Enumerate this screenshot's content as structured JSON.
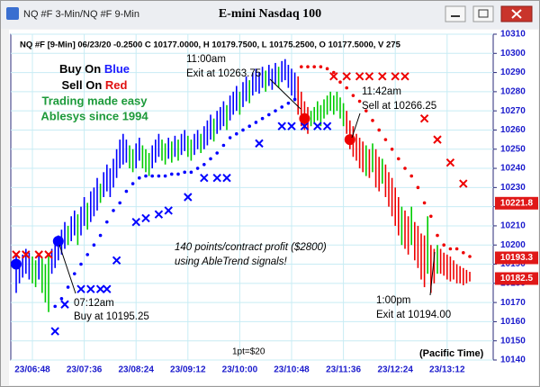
{
  "window_title": "NQ #F 3-Min/NQ #F 9-Min",
  "chart_data": {
    "type": "ohlc",
    "title": "E-mini Nasdaq 100",
    "info": "NQ #F [9-Min] 06/23/20  -0.2500 C 10177.0000, H 10179.7500, L 10175.2500, O 10177.5000, V 275",
    "buy_text": [
      "Buy On",
      "Blue"
    ],
    "sell_text": [
      "Sell On",
      "Red"
    ],
    "tagline": [
      "Trading made easy",
      "Ablesys since 1994"
    ],
    "annotations": [
      "11:00am",
      "Exit at 10263.75",
      "11:42am",
      "Sell at 10266.25",
      "07:12am",
      "Buy at 10195.25",
      "1:00pm",
      "Exit at 10194.00",
      "140 points/contract profit ($2800)",
      "using AbleTrend signals!",
      "1pt=$20",
      "(Pacific Time)"
    ],
    "categories": [
      null,
      null,
      null,
      null,
      null,
      "23/06:48",
      null,
      null,
      null,
      null,
      null,
      null,
      null,
      null,
      null,
      null,
      null,
      null,
      null,
      null,
      null,
      "23/07:36",
      null,
      null,
      null,
      null,
      null,
      null,
      null,
      null,
      null,
      null,
      null,
      null,
      null,
      null,
      null,
      "23/08:24",
      null,
      null,
      null,
      null,
      null,
      null,
      null,
      null,
      null,
      null,
      null,
      null,
      null,
      null,
      null,
      "23/09:12",
      null,
      null,
      null,
      null,
      null,
      null,
      null,
      null,
      null,
      null,
      null,
      null,
      null,
      null,
      null,
      "23/10:00",
      null,
      null,
      null,
      null,
      null,
      null,
      null,
      null,
      null,
      null,
      null,
      null,
      null,
      null,
      null,
      "23/10:48",
      null,
      null,
      null,
      null,
      null,
      null,
      null,
      null,
      null,
      null,
      null,
      null,
      null,
      null,
      null,
      "23/11:36",
      null,
      null,
      null,
      null,
      null,
      null,
      null,
      null,
      null,
      null,
      null,
      null,
      null,
      null,
      null,
      "23/12:24",
      null,
      null,
      null,
      null,
      null,
      null,
      null,
      null,
      null,
      null,
      null,
      null,
      null,
      null,
      null,
      "23/13:12",
      null,
      null,
      null,
      null,
      null,
      null,
      null
    ],
    "high": [
      10195,
      10192,
      10195,
      10198,
      10196,
      10194,
      10192,
      10195,
      10193,
      10190,
      10195,
      10198,
      10200,
      10205,
      10208,
      10212,
      10210,
      10215,
      10218,
      10216,
      10220,
      10225,
      10222,
      10228,
      10230,
      10235,
      10232,
      10238,
      10242,
      10240,
      10245,
      10250,
      10255,
      10258,
      10255,
      10252,
      10250,
      10253,
      10256,
      10252,
      10250,
      10248,
      10252,
      10255,
      10258,
      10255,
      10253,
      10256,
      10254,
      10257,
      10255,
      10258,
      10260,
      10257,
      10255,
      10258,
      10260,
      10258,
      10262,
      10265,
      10268,
      10266,
      10270,
      10272,
      10275,
      10273,
      10278,
      10280,
      10283,
      10280,
      10285,
      10288,
      10286,
      10290,
      10292,
      10290,
      10293,
      10291,
      10294,
      10292,
      10295,
      10293,
      10296,
      10297,
      10294,
      10292,
      10290,
      10288,
      10280,
      10275,
      10272,
      10270,
      10272,
      10275,
      10273,
      10276,
      10278,
      10280,
      10278,
      10280,
      10277,
      10274,
      10270,
      10265,
      10262,
      10258,
      10256,
      10254,
      10252,
      10250,
      10253,
      10250,
      10246,
      10245,
      10242,
      10238,
      10235,
      10230,
      10225,
      10220,
      10218,
      10215,
      10220,
      10212,
      10210,
      10206,
      10205,
      10215,
      10200,
      10198,
      10200,
      10198,
      10196,
      10195,
      10194,
      10192,
      10190,
      10189,
      10188,
      10187,
      10186
    ],
    "low": [
      10175,
      10180,
      10183,
      10185,
      10182,
      10180,
      10178,
      10182,
      10175,
      10170,
      10165,
      10185,
      10188,
      10192,
      10195,
      10198,
      10200,
      10202,
      10205,
      10200,
      10205,
      10210,
      10208,
      10212,
      10215,
      10218,
      10222,
      10225,
      10228,
      10225,
      10230,
      10235,
      10240,
      10242,
      10243,
      10240,
      10238,
      10240,
      10244,
      10240,
      10238,
      10236,
      10240,
      10243,
      10246,
      10244,
      10242,
      10245,
      10243,
      10246,
      10244,
      10247,
      10249,
      10246,
      10244,
      10247,
      10250,
      10248,
      10250,
      10252,
      10255,
      10254,
      10258,
      10260,
      10262,
      10260,
      10265,
      10268,
      10270,
      10268,
      10272,
      10275,
      10274,
      10278,
      10280,
      10279,
      10282,
      10280,
      10283,
      10281,
      10284,
      10282,
      10285,
      10286,
      10282,
      10278,
      10275,
      10268,
      10262,
      10260,
      10258,
      10262,
      10263,
      10265,
      10262,
      10266,
      10268,
      10270,
      10268,
      10270,
      10266,
      10262,
      10258,
      10250,
      10246,
      10244,
      10240,
      10238,
      10236,
      10235,
      10238,
      10230,
      10228,
      10232,
      10225,
      10220,
      10215,
      10210,
      10205,
      10200,
      10198,
      10195,
      10200,
      10192,
      10188,
      10182,
      10178,
      10185,
      10175,
      10180,
      10185,
      10185,
      10184,
      10182,
      10181,
      10182,
      10180,
      10180,
      10179,
      10180,
      10181
    ],
    "bar_colors": [
      "#00f",
      "#00f",
      "#00f",
      "#00f",
      "#00f",
      "#0c0",
      "#0c0",
      "#00f",
      "#0c0",
      "#0c0",
      "#0c0",
      "#00f",
      "#00f",
      "#00f",
      "#00f",
      "#00f",
      "#0c0",
      "#00f",
      "#00f",
      "#0c0",
      "#00f",
      "#00f",
      "#0c0",
      "#00f",
      "#00f",
      "#00f",
      "#0c0",
      "#00f",
      "#00f",
      "#00f",
      "#00f",
      "#00f",
      "#00f",
      "#00f",
      "#00f",
      "#0c0",
      "#0c0",
      "#00f",
      "#00f",
      "#0c0",
      "#0c0",
      "#0c0",
      "#00f",
      "#00f",
      "#00f",
      "#0c0",
      "#0c0",
      "#00f",
      "#0c0",
      "#00f",
      "#0c0",
      "#00f",
      "#00f",
      "#0c0",
      "#0c0",
      "#00f",
      "#00f",
      "#0c0",
      "#00f",
      "#00f",
      "#00f",
      "#0c0",
      "#00f",
      "#00f",
      "#00f",
      "#0c0",
      "#00f",
      "#00f",
      "#00f",
      "#0c0",
      "#00f",
      "#00f",
      "#0c0",
      "#00f",
      "#00f",
      "#00f",
      "#00f",
      "#0c0",
      "#00f",
      "#00f",
      "#00f",
      "#0c0",
      "#00f",
      "#00f",
      "#00f",
      "#00f",
      "#00f",
      "#e00",
      "#e00",
      "#e00",
      "#e00",
      "#0c0",
      "#0c0",
      "#0c0",
      "#0c0",
      "#0c0",
      "#0c0",
      "#0c0",
      "#0c0",
      "#0c0",
      "#0c0",
      "#0c0",
      "#e00",
      "#e00",
      "#e00",
      "#e00",
      "#e00",
      "#e00",
      "#0c0",
      "#e00",
      "#0c0",
      "#e00",
      "#e00",
      "#0c0",
      "#e00",
      "#e00",
      "#e00",
      "#e00",
      "#e00",
      "#0c0",
      "#e00",
      "#e00",
      "#0c0",
      "#e00",
      "#e00",
      "#e00",
      "#e00",
      "#0c0",
      "#e00",
      "#e00",
      "#0c0",
      "#e00",
      "#e00",
      "#e00",
      "#e00",
      "#e00",
      "#e00",
      "#e00",
      "#e00",
      "#e00",
      "#e00"
    ],
    "stop_dots": [
      {
        "color": "#00f",
        "x": [
          12,
          14,
          16,
          18,
          20,
          22,
          24,
          26,
          28,
          30,
          32,
          34,
          36,
          38,
          40,
          42,
          44,
          46,
          48,
          50,
          52,
          54,
          56,
          58,
          60,
          62,
          64,
          66,
          68,
          70,
          72,
          74,
          76,
          78,
          80,
          82,
          84,
          86
        ],
        "values": [
          10168,
          10172,
          10178,
          10185,
          10190,
          10195,
          10200,
          10205,
          10212,
          10218,
          10222,
          10228,
          10232,
          10235,
          10236,
          10236,
          10236,
          10236,
          10237,
          10237,
          10238,
          10238,
          10240,
          10242,
          10245,
          10248,
          10252,
          10256,
          10258,
          10260,
          10262,
          10264,
          10266,
          10268,
          10270,
          10272,
          10274,
          10276
        ]
      },
      {
        "color": "#e00",
        "x": [
          88,
          90,
          92,
          94,
          96,
          98,
          100,
          102,
          104,
          106,
          108,
          110,
          112,
          114,
          116,
          118,
          120,
          122,
          124,
          126,
          128,
          130,
          132,
          134,
          136,
          138,
          140
        ],
        "values": [
          10293,
          10293,
          10293,
          10293,
          10292,
          10290,
          10285,
          10282,
          10278,
          10275,
          10270,
          10265,
          10260,
          10255,
          10250,
          10245,
          10240,
          10236,
          10230,
          10222,
          10215,
          10205,
          10200,
          10198,
          10198,
          10196,
          10194
        ]
      }
    ],
    "stop_x": [
      {
        "color": "#00f",
        "x": [
          12,
          15,
          20,
          23,
          26,
          28,
          31,
          37,
          40,
          44,
          47,
          53,
          58,
          62,
          65,
          75,
          82,
          85,
          89,
          93,
          96
        ],
        "values": [
          10155,
          10169,
          10177,
          10177,
          10177,
          10177,
          10192,
          10212,
          10214,
          10216,
          10218,
          10225,
          10235,
          10235,
          10235,
          10253,
          10262,
          10262,
          10262,
          10262,
          10262
        ]
      },
      {
        "color": "#e00",
        "x": [
          0,
          3,
          7,
          10,
          98,
          102,
          106,
          109,
          113,
          117,
          120,
          126,
          130,
          134,
          138
        ],
        "values": [
          10195,
          10195,
          10195,
          10195,
          10288,
          10288,
          10288,
          10288,
          10288,
          10288,
          10288,
          10266,
          10255,
          10243,
          10232
        ]
      }
    ],
    "signals": [
      {
        "color": "#00f",
        "x": [
          0,
          13
        ],
        "values": [
          10190,
          10202
        ]
      },
      {
        "color": "#e00",
        "x": [
          89,
          103
        ],
        "values": [
          10266,
          10255
        ]
      }
    ],
    "price_labels": [
      10221.8,
      10193.3,
      10182.5
    ],
    "ylim": [
      10140,
      10310
    ],
    "yticks": [
      10140,
      10150,
      10160,
      10170,
      10180,
      10190,
      10200,
      10210,
      10220,
      10230,
      10240,
      10250,
      10260,
      10270,
      10280,
      10290,
      10300,
      10310
    ],
    "grid": true
  }
}
